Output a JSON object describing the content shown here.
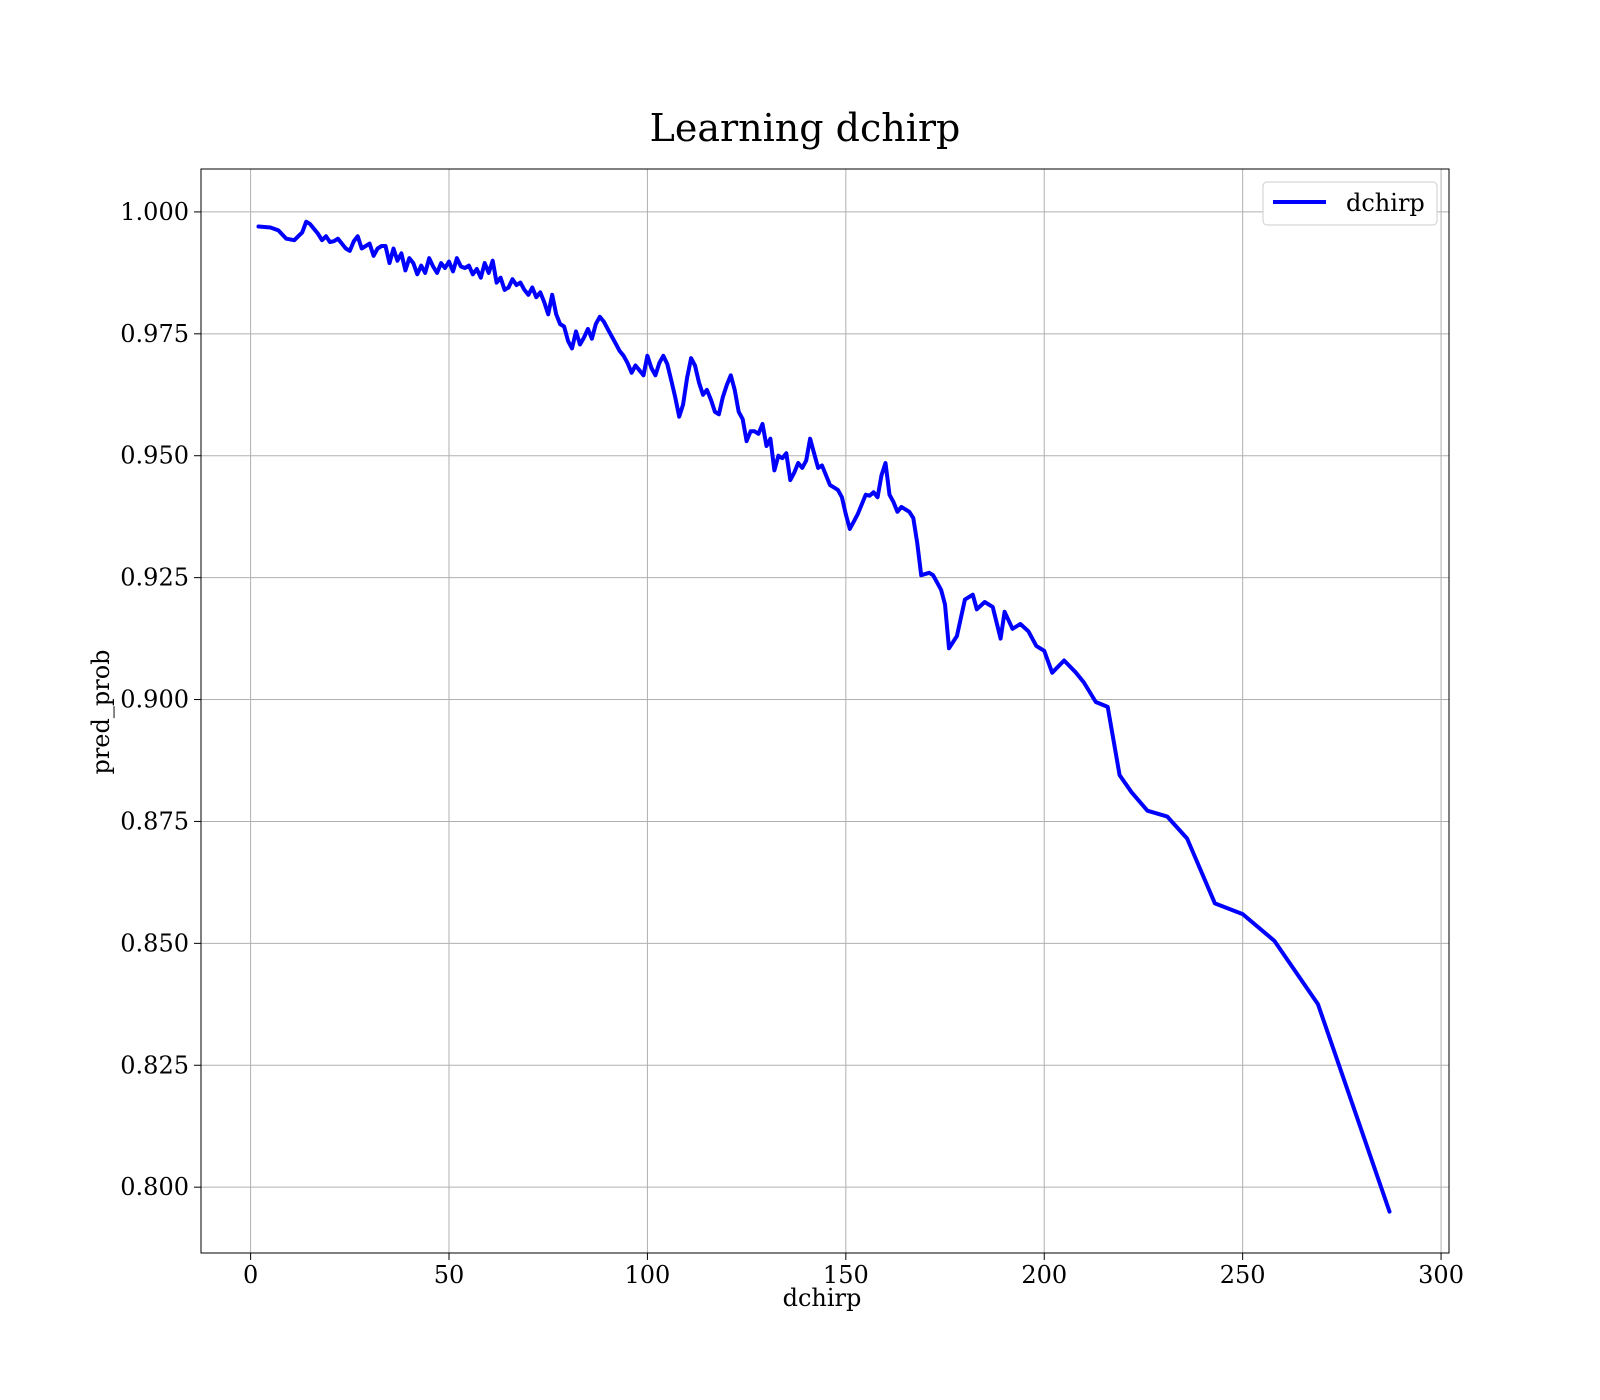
{
  "chart_data": {
    "type": "line",
    "title": "Learning dchirp",
    "xlabel": "dchirp",
    "ylabel": "pred_prob",
    "xlim": [
      -12.5,
      302
    ],
    "ylim": [
      0.7865,
      1.0088
    ],
    "x_ticks": [
      0,
      50,
      100,
      150,
      200,
      250,
      300
    ],
    "y_ticks": [
      0.8,
      0.825,
      0.85,
      0.875,
      0.9,
      0.925,
      0.95,
      0.975,
      1.0
    ],
    "x_tick_labels": [
      "0",
      "50",
      "100",
      "150",
      "200",
      "250",
      "300"
    ],
    "y_tick_labels": [
      "0.800",
      "0.825",
      "0.850",
      "0.875",
      "0.900",
      "0.925",
      "0.950",
      "0.975",
      "1.000"
    ],
    "grid": true,
    "legend": {
      "position": "top-right",
      "entries": [
        "dchirp"
      ]
    },
    "series": [
      {
        "name": "dchirp",
        "color": "#0000ff",
        "x": [
          2,
          5,
          7,
          9,
          11,
          12,
          13,
          14,
          15,
          16,
          17,
          18,
          19,
          20,
          21,
          22,
          23,
          24,
          25,
          26,
          27,
          28,
          29,
          30,
          31,
          32,
          33,
          34,
          35,
          36,
          37,
          38,
          39,
          40,
          41,
          42,
          43,
          44,
          45,
          46,
          47,
          48,
          49,
          50,
          51,
          52,
          53,
          54,
          55,
          56,
          57,
          58,
          59,
          60,
          61,
          62,
          63,
          64,
          65,
          66,
          67,
          68,
          69,
          70,
          71,
          72,
          73,
          74,
          75,
          76,
          77,
          78,
          79,
          80,
          81,
          82,
          83,
          84,
          85,
          86,
          87,
          88,
          89,
          90,
          91,
          92,
          93,
          94,
          95,
          96,
          97,
          98,
          99,
          100,
          101,
          102,
          103,
          104,
          105,
          106,
          107,
          108,
          109,
          110,
          111,
          112,
          113,
          114,
          115,
          116,
          117,
          118,
          119,
          120,
          121,
          122,
          123,
          124,
          125,
          126,
          127,
          128,
          129,
          130,
          131,
          132,
          133,
          134,
          135,
          136,
          137,
          138,
          139,
          140,
          141,
          142,
          143,
          144,
          145,
          146,
          147,
          148,
          149,
          150,
          151,
          152,
          153,
          154,
          155,
          156,
          157,
          158,
          159,
          160,
          161,
          162,
          163,
          164,
          165,
          166,
          167,
          168,
          169,
          171,
          172,
          174,
          175,
          176,
          178,
          180,
          182,
          183,
          185,
          187,
          189,
          190,
          192,
          194,
          196,
          198,
          200,
          202,
          205,
          208,
          210,
          213,
          216,
          219,
          222,
          226,
          231,
          236,
          243,
          250,
          258,
          269,
          287
        ],
        "y": [
          0.997,
          0.9968,
          0.9962,
          0.9945,
          0.9942,
          0.995,
          0.9958,
          0.998,
          0.9975,
          0.9965,
          0.9955,
          0.9942,
          0.995,
          0.9938,
          0.994,
          0.9945,
          0.9935,
          0.9925,
          0.992,
          0.994,
          0.995,
          0.9925,
          0.993,
          0.9935,
          0.991,
          0.9925,
          0.993,
          0.993,
          0.9895,
          0.9925,
          0.99,
          0.9915,
          0.988,
          0.9905,
          0.9895,
          0.9872,
          0.989,
          0.9875,
          0.9905,
          0.9888,
          0.9875,
          0.9895,
          0.9885,
          0.9898,
          0.9878,
          0.9905,
          0.9888,
          0.9885,
          0.989,
          0.9872,
          0.9883,
          0.9865,
          0.9895,
          0.9875,
          0.99,
          0.9855,
          0.9865,
          0.984,
          0.9845,
          0.9862,
          0.985,
          0.9855,
          0.984,
          0.983,
          0.9845,
          0.9825,
          0.9835,
          0.9815,
          0.979,
          0.983,
          0.979,
          0.977,
          0.9765,
          0.9735,
          0.972,
          0.9755,
          0.9728,
          0.9742,
          0.976,
          0.974,
          0.977,
          0.9785,
          0.9775,
          0.976,
          0.9745,
          0.973,
          0.9715,
          0.9705,
          0.969,
          0.967,
          0.9685,
          0.9675,
          0.9665,
          0.9705,
          0.968,
          0.9665,
          0.969,
          0.9705,
          0.9688,
          0.9655,
          0.962,
          0.958,
          0.9605,
          0.966,
          0.97,
          0.9685,
          0.965,
          0.9625,
          0.9635,
          0.9615,
          0.959,
          0.9585,
          0.962,
          0.9645,
          0.9665,
          0.9635,
          0.959,
          0.9575,
          0.953,
          0.955,
          0.955,
          0.9545,
          0.9565,
          0.952,
          0.9535,
          0.947,
          0.95,
          0.9495,
          0.9505,
          0.945,
          0.9465,
          0.9485,
          0.9475,
          0.949,
          0.9535,
          0.9505,
          0.9475,
          0.948,
          0.946,
          0.944,
          0.9435,
          0.943,
          0.9415,
          0.938,
          0.935,
          0.9365,
          0.938,
          0.94,
          0.942,
          0.9418,
          0.9425,
          0.9415,
          0.946,
          0.9485,
          0.942,
          0.9405,
          0.9385,
          0.9395,
          0.939,
          0.9385,
          0.9372,
          0.932,
          0.9255,
          0.926,
          0.9255,
          0.9225,
          0.9195,
          0.9105,
          0.913,
          0.9205,
          0.9215,
          0.9185,
          0.92,
          0.919,
          0.9125,
          0.918,
          0.9145,
          0.9155,
          0.914,
          0.911,
          0.91,
          0.9055,
          0.908,
          0.9055,
          0.9035,
          0.8995,
          0.8985,
          0.8845,
          0.881,
          0.8772,
          0.876,
          0.8715,
          0.8582,
          0.856,
          0.8505,
          0.8375,
          0.795
        ]
      }
    ]
  }
}
